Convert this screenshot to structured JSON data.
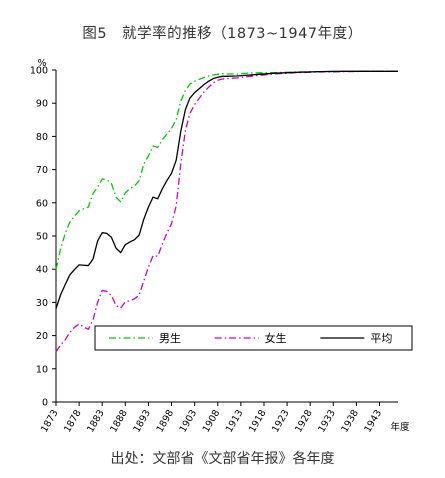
{
  "chart_data": {
    "type": "line",
    "title": "图5　就学率的推移（1873~1947年度）",
    "ylabel": "%",
    "xlabel": "年度",
    "ylim": [
      0,
      100
    ],
    "yticks": [
      0,
      10,
      20,
      30,
      40,
      50,
      60,
      70,
      80,
      90,
      100
    ],
    "xlim": [
      1873,
      1947
    ],
    "xticks": [
      "1873",
      "1878",
      "1883",
      "1888",
      "1893",
      "1898",
      "1903",
      "1908",
      "1913",
      "1918",
      "1923",
      "1928",
      "1933",
      "1938",
      "1943"
    ],
    "grid": false,
    "legend_position": "lower-right",
    "series": [
      {
        "name": "男生",
        "color": "#00cc00",
        "style": "dashdot",
        "x": [
          1873,
          1874,
          1875,
          1876,
          1877,
          1878,
          1879,
          1880,
          1881,
          1882,
          1883,
          1884,
          1885,
          1886,
          1887,
          1888,
          1889,
          1890,
          1891,
          1892,
          1893,
          1894,
          1895,
          1896,
          1897,
          1898,
          1899,
          1900,
          1901,
          1902,
          1903,
          1904,
          1905,
          1906,
          1907,
          1908,
          1909,
          1910,
          1912,
          1915,
          1920,
          1925,
          1930,
          1935,
          1940,
          1945,
          1947
        ],
        "values": [
          39.9,
          46.2,
          50.8,
          54.2,
          56.0,
          57.6,
          58.2,
          58.7,
          62.8,
          64.7,
          67.2,
          66.9,
          65.8,
          61.7,
          60.3,
          63.0,
          64.3,
          65.1,
          66.7,
          71.7,
          74.1,
          77.1,
          76.7,
          79.0,
          80.7,
          82.4,
          85.1,
          90.6,
          93.8,
          95.8,
          96.6,
          97.2,
          97.7,
          98.2,
          98.5,
          98.7,
          98.9,
          98.8,
          98.8,
          99.1,
          99.2,
          99.4,
          99.5,
          99.6,
          99.6,
          99.6,
          99.6
        ]
      },
      {
        "name": "女生",
        "color": "#cc00cc",
        "style": "dashdot",
        "x": [
          1873,
          1874,
          1875,
          1876,
          1877,
          1878,
          1879,
          1880,
          1881,
          1882,
          1883,
          1884,
          1885,
          1886,
          1887,
          1888,
          1889,
          1890,
          1891,
          1892,
          1893,
          1894,
          1895,
          1896,
          1897,
          1898,
          1899,
          1900,
          1901,
          1902,
          1903,
          1904,
          1905,
          1906,
          1907,
          1908,
          1909,
          1910,
          1912,
          1915,
          1920,
          1925,
          1930,
          1935,
          1940,
          1945,
          1947
        ],
        "values": [
          15.1,
          17.2,
          18.7,
          21.0,
          22.5,
          23.5,
          22.6,
          21.9,
          24.7,
          30.0,
          33.6,
          33.3,
          32.1,
          29.0,
          28.3,
          30.2,
          30.5,
          31.1,
          32.2,
          36.5,
          40.6,
          44.1,
          43.9,
          47.5,
          50.9,
          53.7,
          59.0,
          71.7,
          81.8,
          87.0,
          89.6,
          91.5,
          93.3,
          94.8,
          96.1,
          96.9,
          97.3,
          97.4,
          97.6,
          98.1,
          98.8,
          99.2,
          99.4,
          99.5,
          99.6,
          99.6,
          99.6
        ]
      },
      {
        "name": "平均",
        "color": "#000000",
        "style": "solid",
        "x": [
          1873,
          1874,
          1875,
          1876,
          1877,
          1878,
          1879,
          1880,
          1881,
          1882,
          1883,
          1884,
          1885,
          1886,
          1887,
          1888,
          1889,
          1890,
          1891,
          1892,
          1893,
          1894,
          1895,
          1896,
          1897,
          1898,
          1899,
          1900,
          1901,
          1902,
          1903,
          1904,
          1905,
          1906,
          1907,
          1908,
          1909,
          1910,
          1912,
          1915,
          1920,
          1925,
          1930,
          1935,
          1940,
          1945,
          1947
        ],
        "values": [
          28.1,
          32.3,
          35.4,
          38.3,
          39.9,
          41.3,
          41.2,
          41.1,
          43.0,
          48.5,
          51.0,
          50.8,
          49.6,
          46.3,
          45.0,
          47.4,
          48.2,
          48.9,
          50.3,
          55.1,
          58.7,
          61.7,
          61.2,
          64.2,
          66.7,
          68.9,
          72.8,
          81.5,
          88.1,
          91.6,
          93.2,
          94.4,
          95.6,
          96.6,
          97.4,
          97.8,
          98.1,
          98.1,
          98.2,
          98.5,
          99.0,
          99.3,
          99.5,
          99.6,
          99.6,
          99.6,
          99.6
        ]
      }
    ]
  },
  "source": "出处：文部省《文部省年报》各年度"
}
